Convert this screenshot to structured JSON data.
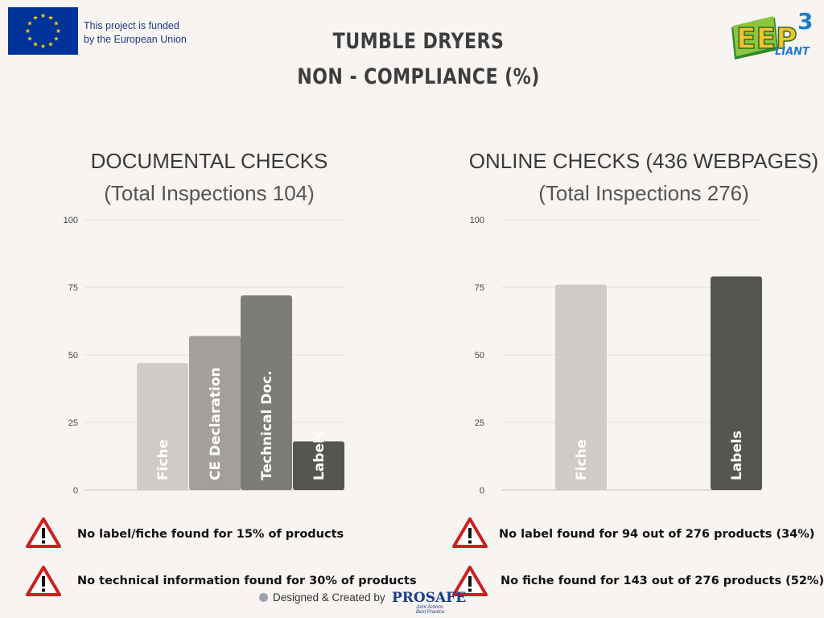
{
  "header": {
    "funding_line1": "This project is funded",
    "funding_line2": "by the European Union",
    "title_line1": "TUMBLE DRYERS",
    "title_line2": "NON - COMPLIANCE (%)",
    "logo_text": "EEP",
    "logo_sup": "3",
    "logo_sub": "LIANT"
  },
  "colors": {
    "background": "#f7f4f2",
    "eu_blue": "#003399",
    "eu_star": "#ffcc00",
    "warning_red": "#cc1f1f"
  },
  "chart_data": [
    {
      "type": "bar",
      "title": "DOCUMENTAL CHECKS",
      "subtitle": "(Total Inspections 104)",
      "categories": [
        "Fiche",
        "CE Declaration",
        "Technical Doc.",
        "Labels"
      ],
      "values": [
        47,
        57,
        72,
        18
      ],
      "bar_colors": [
        "#cfcbc6",
        "#a3a09c",
        "#7d7c78",
        "#555551"
      ],
      "yticks": [
        0,
        25,
        50,
        75,
        100
      ],
      "ylim": [
        0,
        100
      ],
      "grid": true
    },
    {
      "type": "bar",
      "title": "ONLINE CHECKS (436 WEBPAGES)",
      "subtitle": "(Total Inspections 276)",
      "categories": [
        "Fiche",
        "",
        "Labels"
      ],
      "values": [
        76,
        0,
        79
      ],
      "bar_colors": [
        "#cfcbc6",
        "#a3a09c",
        "#555551"
      ],
      "yticks": [
        0,
        25,
        50,
        75,
        100
      ],
      "ylim": [
        0,
        100
      ],
      "grid": true
    }
  ],
  "warnings": [
    {
      "text": "No label/fiche found for 15% of products"
    },
    {
      "text": "No technical information found for 30% of products"
    },
    {
      "text": "No label found for 94 out of 276 products (34%)"
    },
    {
      "text": "No fiche found for 143 out of 276 products (52%)"
    }
  ],
  "footer": {
    "credit": "Designed & Created by",
    "brand": "PROSAFE",
    "brand_sub1": "Joint Actions",
    "brand_sub2": "Best Practice"
  }
}
